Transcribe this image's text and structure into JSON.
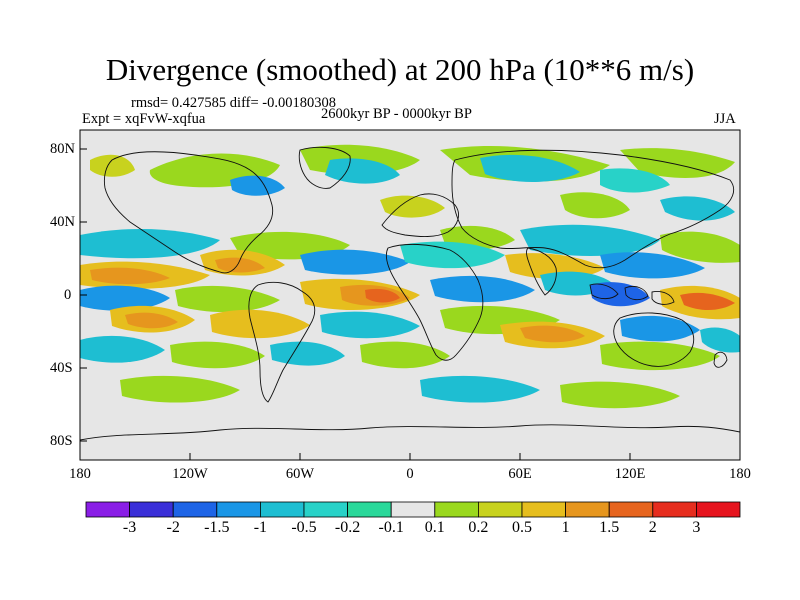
{
  "title": "Divergence (smoothed) at 200 hPa (10**6 m/s)",
  "stats": "rmsd= 0.427585 diff= -0.00180308",
  "experiment": "Expt = xqFvW-xqfua",
  "period": "2600kyr BP - 0000kyr BP",
  "season": "JJA",
  "lat_labels": [
    "80N",
    "40N",
    "0",
    "40S",
    "80S"
  ],
  "lon_labels": [
    "180",
    "120W",
    "60W",
    "0",
    "60E",
    "120E",
    "180"
  ],
  "colorbar": {
    "labels": [
      "-3",
      "-2",
      "-1.5",
      "-1",
      "-0.5",
      "-0.2",
      "-0.1",
      "0.1",
      "0.2",
      "0.5",
      "1",
      "1.5",
      "2",
      "3"
    ],
    "colors": [
      "#8a1ee6",
      "#3a2fd8",
      "#1e64e6",
      "#1a96e6",
      "#1ebed2",
      "#28d2c8",
      "#2ad89a",
      "#e6e6e6",
      "#9ad81e",
      "#c8d21e",
      "#e6be1e",
      "#e6961e",
      "#e6641e",
      "#e62d1e",
      "#e6141e"
    ]
  },
  "colors": {
    "neutral": "#e6e6e6",
    "coast": "#111111"
  }
}
